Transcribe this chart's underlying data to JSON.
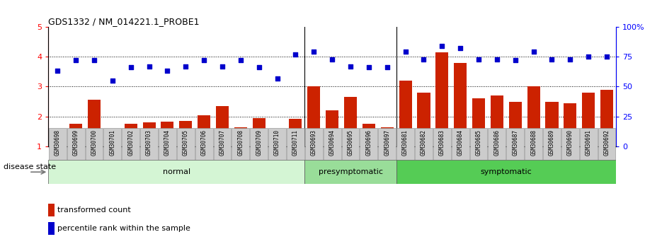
{
  "title": "GDS1332 / NM_014221.1_PROBE1",
  "samples": [
    "GSM30698",
    "GSM30699",
    "GSM30700",
    "GSM30701",
    "GSM30702",
    "GSM30703",
    "GSM30704",
    "GSM30705",
    "GSM30706",
    "GSM30707",
    "GSM30708",
    "GSM30709",
    "GSM30710",
    "GSM30711",
    "GSM30693",
    "GSM30694",
    "GSM30695",
    "GSM30696",
    "GSM30697",
    "GSM30681",
    "GSM30682",
    "GSM30683",
    "GSM30684",
    "GSM30685",
    "GSM30686",
    "GSM30687",
    "GSM30688",
    "GSM30689",
    "GSM30690",
    "GSM30691",
    "GSM30692"
  ],
  "bar_values": [
    1.6,
    1.75,
    2.55,
    1.05,
    1.75,
    1.8,
    1.82,
    1.85,
    2.05,
    2.35,
    1.65,
    1.95,
    1.2,
    1.92,
    3.0,
    2.2,
    2.65,
    1.75,
    1.65,
    3.2,
    2.8,
    4.15,
    3.8,
    2.6,
    2.7,
    2.5,
    3.0,
    2.5,
    2.45,
    2.8,
    2.9
  ],
  "dot_values_pct": [
    63,
    72,
    72,
    55,
    66,
    67,
    63,
    67,
    72,
    67,
    72,
    66,
    57,
    77,
    79,
    73,
    67,
    66,
    66,
    79,
    73,
    84,
    82,
    73,
    73,
    72,
    79,
    73,
    73,
    75,
    75
  ],
  "groups": [
    {
      "label": "normal",
      "start": 0,
      "end": 14,
      "color": "#d4f5d4"
    },
    {
      "label": "presymptomatic",
      "start": 14,
      "end": 19,
      "color": "#99dd99"
    },
    {
      "label": "symptomatic",
      "start": 19,
      "end": 31,
      "color": "#55cc55"
    }
  ],
  "bar_color": "#cc2200",
  "dot_color": "#0000cc",
  "ylim_left": [
    1,
    5
  ],
  "ylim_right": [
    0,
    100
  ],
  "yticks_left": [
    1,
    2,
    3,
    4,
    5
  ],
  "yticks_right": [
    0,
    25,
    50,
    75,
    100
  ],
  "legend_tc": "transformed count",
  "legend_pr": "percentile rank within the sample",
  "disease_state_label": "disease state"
}
